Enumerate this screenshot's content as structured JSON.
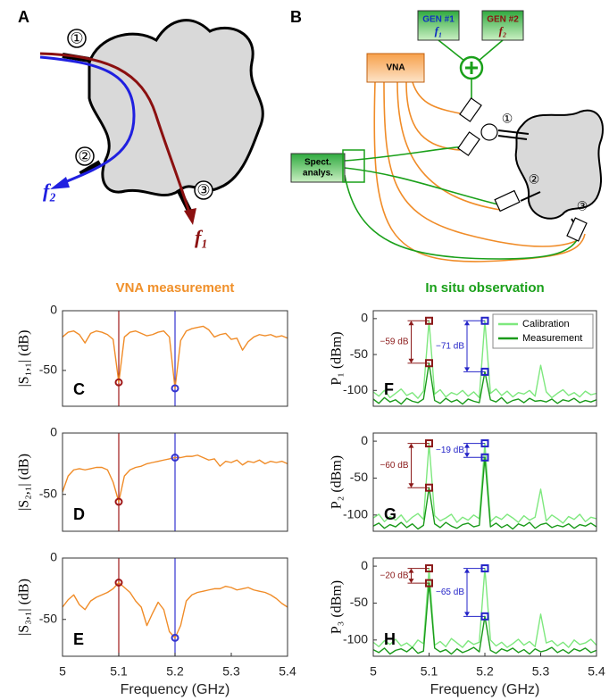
{
  "column_titles": [
    "VNA measurement",
    "In situ observation"
  ],
  "diagram_a": {
    "label": "A",
    "ports": [
      "①",
      "②",
      "③"
    ],
    "outputs": [
      "f₂",
      "f₁"
    ]
  },
  "diagram_b": {
    "label": "B",
    "generators": [
      {
        "name": "GEN #1",
        "freq": "f₁"
      },
      {
        "name": "GEN #2",
        "freq": "f₂"
      }
    ],
    "vna": "VNA",
    "spectrum_analyzer": [
      "Spect.",
      "analys."
    ],
    "ports": [
      "①",
      "②",
      "③"
    ]
  },
  "chart_data": [
    {
      "type": "line",
      "panel_label": "C",
      "ylabel": "|S₁,₁| (dB)",
      "xlim": [
        5,
        5.4
      ],
      "ylim": [
        -80,
        0
      ],
      "yticks": [
        0,
        -50
      ],
      "x": [
        5,
        5.01,
        5.02,
        5.03,
        5.04,
        5.05,
        5.06,
        5.07,
        5.08,
        5.09,
        5.1,
        5.11,
        5.12,
        5.13,
        5.14,
        5.15,
        5.16,
        5.17,
        5.18,
        5.19,
        5.2,
        5.21,
        5.22,
        5.23,
        5.24,
        5.25,
        5.26,
        5.27,
        5.28,
        5.29,
        5.3,
        5.31,
        5.32,
        5.33,
        5.34,
        5.35,
        5.36,
        5.37,
        5.38,
        5.39,
        5.4
      ],
      "series": [
        {
          "color": "#f08c28",
          "values": [
            -22,
            -18,
            -17,
            -20,
            -27,
            -19,
            -17,
            -18,
            -20,
            -24,
            -60,
            -22,
            -18,
            -17,
            -19,
            -21,
            -20,
            -18,
            -17,
            -22,
            -65,
            -25,
            -17,
            -15,
            -14,
            -13,
            -16,
            -22,
            -20,
            -19,
            -24,
            -23,
            -33,
            -26,
            -22,
            -20,
            -21,
            -20,
            -22,
            -21,
            -23
          ]
        }
      ],
      "vlines": [
        {
          "x": 5.1,
          "color": "#a01818"
        },
        {
          "x": 5.2,
          "color": "#3434d0"
        }
      ],
      "markers": [
        {
          "x": 5.1,
          "y": -60,
          "color": "#a01818"
        },
        {
          "x": 5.2,
          "y": -65,
          "color": "#3434d0"
        }
      ]
    },
    {
      "type": "line",
      "panel_label": "D",
      "ylabel": "|S₂,₁| (dB)",
      "xlim": [
        5,
        5.4
      ],
      "ylim": [
        -80,
        0
      ],
      "yticks": [
        0,
        -50
      ],
      "x": [
        5,
        5.01,
        5.02,
        5.03,
        5.04,
        5.05,
        5.06,
        5.07,
        5.08,
        5.09,
        5.1,
        5.11,
        5.12,
        5.13,
        5.14,
        5.15,
        5.16,
        5.17,
        5.18,
        5.19,
        5.2,
        5.21,
        5.22,
        5.23,
        5.24,
        5.25,
        5.26,
        5.27,
        5.28,
        5.29,
        5.3,
        5.31,
        5.32,
        5.33,
        5.34,
        5.35,
        5.36,
        5.37,
        5.38,
        5.39,
        5.4
      ],
      "series": [
        {
          "color": "#f08c28",
          "values": [
            -48,
            -35,
            -30,
            -29,
            -30,
            -29,
            -28,
            -28,
            -30,
            -40,
            -56,
            -35,
            -30,
            -28,
            -27,
            -25,
            -24,
            -23,
            -22,
            -21,
            -20,
            -20,
            -19,
            -19,
            -18,
            -20,
            -22,
            -21,
            -27,
            -23,
            -24,
            -22,
            -26,
            -23,
            -24,
            -22,
            -25,
            -23,
            -24,
            -23,
            -25
          ]
        }
      ],
      "vlines": [
        {
          "x": 5.1,
          "color": "#a01818"
        },
        {
          "x": 5.2,
          "color": "#3434d0"
        }
      ],
      "markers": [
        {
          "x": 5.1,
          "y": -56,
          "color": "#a01818"
        },
        {
          "x": 5.2,
          "y": -20,
          "color": "#3434d0"
        }
      ]
    },
    {
      "type": "line",
      "panel_label": "E",
      "ylabel": "|S₃,₁| (dB)",
      "xlabel": "Frequency (GHz)",
      "xlim": [
        5,
        5.4
      ],
      "ylim": [
        -80,
        0
      ],
      "yticks": [
        0,
        -50
      ],
      "xticks": [
        5,
        5.1,
        5.2,
        5.3,
        5.4
      ],
      "x": [
        5,
        5.01,
        5.02,
        5.03,
        5.04,
        5.05,
        5.06,
        5.07,
        5.08,
        5.09,
        5.1,
        5.11,
        5.12,
        5.13,
        5.14,
        5.15,
        5.16,
        5.17,
        5.18,
        5.19,
        5.2,
        5.21,
        5.22,
        5.23,
        5.24,
        5.25,
        5.26,
        5.27,
        5.28,
        5.29,
        5.3,
        5.31,
        5.32,
        5.33,
        5.34,
        5.35,
        5.36,
        5.37,
        5.38,
        5.39,
        5.4
      ],
      "series": [
        {
          "color": "#f08c28",
          "values": [
            -40,
            -34,
            -30,
            -38,
            -42,
            -35,
            -32,
            -30,
            -28,
            -25,
            -20,
            -24,
            -28,
            -35,
            -40,
            -55,
            -45,
            -36,
            -42,
            -60,
            -65,
            -55,
            -35,
            -30,
            -28,
            -27,
            -26,
            -25,
            -25,
            -23,
            -24,
            -26,
            -25,
            -24,
            -26,
            -27,
            -28,
            -30,
            -33,
            -37,
            -40
          ]
        }
      ],
      "vlines": [
        {
          "x": 5.1,
          "color": "#a01818"
        },
        {
          "x": 5.2,
          "color": "#3434d0"
        }
      ],
      "markers": [
        {
          "x": 5.1,
          "y": -20,
          "color": "#a01818"
        },
        {
          "x": 5.2,
          "y": -65,
          "color": "#3434d0"
        }
      ]
    },
    {
      "type": "line",
      "panel_label": "F",
      "ylabel": "P₁ (dBm)",
      "xlim": [
        5,
        5.4
      ],
      "ylim": [
        -122,
        11
      ],
      "yticks": [
        0,
        -50,
        -100
      ],
      "legend": "upper right",
      "x": [
        5,
        5.01,
        5.02,
        5.03,
        5.04,
        5.05,
        5.06,
        5.07,
        5.08,
        5.09,
        5.1,
        5.11,
        5.12,
        5.13,
        5.14,
        5.15,
        5.16,
        5.17,
        5.18,
        5.19,
        5.2,
        5.21,
        5.22,
        5.23,
        5.24,
        5.25,
        5.26,
        5.27,
        5.28,
        5.29,
        5.3,
        5.31,
        5.32,
        5.33,
        5.34,
        5.35,
        5.36,
        5.37,
        5.38,
        5.39,
        5.4
      ],
      "series": [
        {
          "name": "Calibration",
          "color": "#7ee87e",
          "values": [
            -102,
            -108,
            -100,
            -110,
            -104,
            -98,
            -107,
            -103,
            -111,
            -101,
            -3,
            -105,
            -99,
            -109,
            -103,
            -106,
            -100,
            -108,
            -102,
            -110,
            -3,
            -104,
            -98,
            -107,
            -101,
            -109,
            -103,
            -105,
            -100,
            -108,
            -65,
            -102,
            -110,
            -104,
            -99,
            -107,
            -103,
            -109,
            -101,
            -106,
            -104
          ]
        },
        {
          "name": "Measurement",
          "color": "#1a9a1a",
          "values": [
            -112,
            -118,
            -110,
            -116,
            -113,
            -119,
            -111,
            -115,
            -117,
            -112,
            -62,
            -114,
            -118,
            -111,
            -116,
            -113,
            -119,
            -112,
            -115,
            -117,
            -74,
            -113,
            -116,
            -110,
            -118,
            -114,
            -112,
            -117,
            -111,
            -115,
            -114,
            -116,
            -112,
            -118,
            -113,
            -115,
            -111,
            -117,
            -114,
            -116,
            -113
          ]
        }
      ],
      "annotations": [
        {
          "x": 5.1,
          "y": [
            -3,
            -62
          ],
          "text": "−59 dB",
          "color": "#8b1a1a"
        },
        {
          "x": 5.2,
          "y": [
            -3,
            -74
          ],
          "text": "−71 dB",
          "color": "#2424c8"
        }
      ]
    },
    {
      "type": "line",
      "panel_label": "G",
      "ylabel": "P₂ (dBm)",
      "xlim": [
        5,
        5.4
      ],
      "ylim": [
        -122,
        11
      ],
      "yticks": [
        0,
        -50,
        -100
      ],
      "x": [
        5,
        5.01,
        5.02,
        5.03,
        5.04,
        5.05,
        5.06,
        5.07,
        5.08,
        5.09,
        5.1,
        5.11,
        5.12,
        5.13,
        5.14,
        5.15,
        5.16,
        5.17,
        5.18,
        5.19,
        5.2,
        5.21,
        5.22,
        5.23,
        5.24,
        5.25,
        5.26,
        5.27,
        5.28,
        5.29,
        5.3,
        5.31,
        5.32,
        5.33,
        5.34,
        5.35,
        5.36,
        5.37,
        5.38,
        5.39,
        5.4
      ],
      "series": [
        {
          "color": "#7ee87e",
          "values": [
            -104,
            -99,
            -109,
            -102,
            -107,
            -100,
            -110,
            -103,
            -98,
            -106,
            -3,
            -101,
            -108,
            -104,
            -99,
            -110,
            -103,
            -107,
            -100,
            -105,
            -3,
            -109,
            -102,
            -106,
            -99,
            -104,
            -110,
            -101,
            -107,
            -103,
            -65,
            -108,
            -100,
            -105,
            -111,
            -102,
            -106,
            -99,
            -109,
            -103,
            -105
          ]
        },
        {
          "color": "#1a9a1a",
          "values": [
            -115,
            -111,
            -118,
            -113,
            -116,
            -110,
            -117,
            -112,
            -119,
            -114,
            -63,
            -112,
            -117,
            -110,
            -115,
            -118,
            -113,
            -111,
            -116,
            -114,
            -22,
            -116,
            -111,
            -117,
            -113,
            -119,
            -112,
            -115,
            -110,
            -118,
            -113,
            -111,
            -117,
            -114,
            -116,
            -112,
            -118,
            -113,
            -115,
            -111,
            -116
          ]
        }
      ],
      "annotations": [
        {
          "x": 5.1,
          "y": [
            -3,
            -63
          ],
          "text": "−60 dB",
          "color": "#8b1a1a"
        },
        {
          "x": 5.2,
          "y": [
            -3,
            -22
          ],
          "text": "−19 dB",
          "color": "#2424c8"
        }
      ]
    },
    {
      "type": "line",
      "panel_label": "H",
      "ylabel": "P₃ (dBm)",
      "xlabel": "Frequency (GHz)",
      "xlim": [
        5,
        5.4
      ],
      "ylim": [
        -122,
        11
      ],
      "yticks": [
        0,
        -50,
        -100
      ],
      "xticks": [
        5,
        5.1,
        5.2,
        5.3,
        5.4
      ],
      "x": [
        5,
        5.01,
        5.02,
        5.03,
        5.04,
        5.05,
        5.06,
        5.07,
        5.08,
        5.09,
        5.1,
        5.11,
        5.12,
        5.13,
        5.14,
        5.15,
        5.16,
        5.17,
        5.18,
        5.19,
        5.2,
        5.21,
        5.22,
        5.23,
        5.24,
        5.25,
        5.26,
        5.27,
        5.28,
        5.29,
        5.3,
        5.31,
        5.32,
        5.33,
        5.34,
        5.35,
        5.36,
        5.37,
        5.38,
        5.39,
        5.4
      ],
      "series": [
        {
          "color": "#7ee87e",
          "values": [
            -103,
            -109,
            -101,
            -106,
            -99,
            -108,
            -104,
            -110,
            -100,
            -105,
            -3,
            -107,
            -102,
            -109,
            -98,
            -104,
            -110,
            -101,
            -106,
            -103,
            -3,
            -100,
            -108,
            -103,
            -110,
            -105,
            -99,
            -107,
            -102,
            -109,
            -65,
            -104,
            -101,
            -108,
            -103,
            -110,
            -100,
            -106,
            -104,
            -99,
            -107
          ]
        },
        {
          "color": "#1a9a1a",
          "values": [
            -113,
            -117,
            -111,
            -119,
            -114,
            -112,
            -116,
            -110,
            -118,
            -115,
            -23,
            -111,
            -116,
            -113,
            -119,
            -112,
            -117,
            -114,
            -110,
            -116,
            -68,
            -114,
            -118,
            -112,
            -115,
            -111,
            -117,
            -113,
            -119,
            -112,
            -116,
            -114,
            -110,
            -117,
            -113,
            -118,
            -112,
            -115,
            -111,
            -117,
            -114
          ]
        }
      ],
      "annotations": [
        {
          "x": 5.1,
          "y": [
            -3,
            -23
          ],
          "text": "−20 dB",
          "color": "#8b1a1a"
        },
        {
          "x": 5.2,
          "y": [
            -3,
            -68
          ],
          "text": "−65 dB",
          "color": "#2424c8"
        }
      ]
    }
  ]
}
